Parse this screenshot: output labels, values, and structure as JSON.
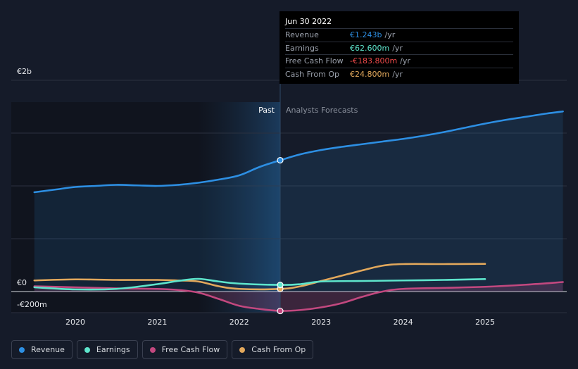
{
  "colors": {
    "revenue": "#2d8fe3",
    "earnings": "#5ee5cc",
    "fcf": "#c2487f",
    "cfo": "#e2a85c",
    "background": "#151b29"
  },
  "tooltip": {
    "date": "Jun 30 2022",
    "rows": [
      {
        "label": "Revenue",
        "value": "€1.243b",
        "unit": "/yr",
        "color": "#2d8fe3"
      },
      {
        "label": "Earnings",
        "value": "€62.600m",
        "unit": "/yr",
        "color": "#5ee5cc"
      },
      {
        "label": "Free Cash Flow",
        "value": "-€183.800m",
        "unit": "/yr",
        "color": "#ef4a4a"
      },
      {
        "label": "Cash From Op",
        "value": "€24.800m",
        "unit": "/yr",
        "color": "#e2a85c"
      }
    ]
  },
  "legend": [
    {
      "label": "Revenue",
      "color": "#2d8fe3"
    },
    {
      "label": "Earnings",
      "color": "#5ee5cc"
    },
    {
      "label": "Free Cash Flow",
      "color": "#c2487f"
    },
    {
      "label": "Cash From Op",
      "color": "#e2a85c"
    }
  ],
  "chart_data": {
    "type": "line",
    "title": "",
    "xlabel": "",
    "ylabel": "",
    "ylim": [
      -200,
      2000
    ],
    "xlim": [
      2019.5,
      2025.95
    ],
    "past_label": "Past",
    "forecast_label": "Analysts Forecasts",
    "past_end": 2022.5,
    "y_ticks": [
      {
        "value": 2000,
        "label": "€2b"
      },
      {
        "value": 0,
        "label": "€0"
      },
      {
        "value": -200,
        "label": "-€200m"
      }
    ],
    "x_ticks": [
      {
        "value": 2020,
        "label": "2020"
      },
      {
        "value": 2021,
        "label": "2021"
      },
      {
        "value": 2022,
        "label": "2022"
      },
      {
        "value": 2023,
        "label": "2023"
      },
      {
        "value": 2024,
        "label": "2024"
      },
      {
        "value": 2025,
        "label": "2025"
      }
    ],
    "highlight": {
      "x": 2022.5,
      "date": "Jun 30 2022"
    },
    "series": [
      {
        "name": "Revenue",
        "key": "revenue",
        "points": [
          [
            2019.5,
            940
          ],
          [
            2019.75,
            965
          ],
          [
            2020.0,
            990
          ],
          [
            2020.25,
            1000
          ],
          [
            2020.5,
            1010
          ],
          [
            2020.75,
            1005
          ],
          [
            2021.0,
            1000
          ],
          [
            2021.25,
            1010
          ],
          [
            2021.5,
            1030
          ],
          [
            2021.75,
            1060
          ],
          [
            2022.0,
            1100
          ],
          [
            2022.25,
            1180
          ],
          [
            2022.5,
            1243
          ],
          [
            2022.75,
            1300
          ],
          [
            2023.0,
            1340
          ],
          [
            2023.25,
            1370
          ],
          [
            2023.5,
            1395
          ],
          [
            2023.75,
            1420
          ],
          [
            2024.0,
            1445
          ],
          [
            2024.25,
            1475
          ],
          [
            2024.5,
            1510
          ],
          [
            2024.75,
            1550
          ],
          [
            2025.0,
            1590
          ],
          [
            2025.25,
            1625
          ],
          [
            2025.5,
            1655
          ],
          [
            2025.75,
            1685
          ],
          [
            2025.95,
            1705
          ]
        ]
      },
      {
        "name": "Earnings",
        "key": "earnings",
        "points": [
          [
            2019.5,
            40
          ],
          [
            2020.0,
            20
          ],
          [
            2020.5,
            25
          ],
          [
            2021.0,
            70
          ],
          [
            2021.25,
            100
          ],
          [
            2021.5,
            120
          ],
          [
            2021.75,
            95
          ],
          [
            2022.0,
            75
          ],
          [
            2022.5,
            62.6
          ],
          [
            2022.75,
            70
          ],
          [
            2023.0,
            95
          ],
          [
            2023.5,
            100
          ],
          [
            2024.0,
            105
          ],
          [
            2024.5,
            110
          ],
          [
            2025.0,
            118
          ]
        ]
      },
      {
        "name": "Free Cash Flow",
        "key": "fcf",
        "points": [
          [
            2019.5,
            50
          ],
          [
            2020.0,
            40
          ],
          [
            2020.5,
            30
          ],
          [
            2021.0,
            25
          ],
          [
            2021.25,
            15
          ],
          [
            2021.5,
            -10
          ],
          [
            2021.75,
            -70
          ],
          [
            2022.0,
            -135
          ],
          [
            2022.25,
            -165
          ],
          [
            2022.5,
            -183.8
          ],
          [
            2022.75,
            -175
          ],
          [
            2023.0,
            -150
          ],
          [
            2023.25,
            -110
          ],
          [
            2023.5,
            -50
          ],
          [
            2023.75,
            0
          ],
          [
            2024.0,
            25
          ],
          [
            2024.5,
            35
          ],
          [
            2025.0,
            45
          ],
          [
            2025.5,
            65
          ],
          [
            2025.95,
            90
          ]
        ]
      },
      {
        "name": "Cash From Op",
        "key": "cfo",
        "points": [
          [
            2019.5,
            105
          ],
          [
            2020.0,
            115
          ],
          [
            2020.5,
            110
          ],
          [
            2021.0,
            110
          ],
          [
            2021.25,
            105
          ],
          [
            2021.5,
            95
          ],
          [
            2021.75,
            50
          ],
          [
            2022.0,
            25
          ],
          [
            2022.5,
            24.8
          ],
          [
            2022.75,
            50
          ],
          [
            2023.0,
            100
          ],
          [
            2023.25,
            150
          ],
          [
            2023.5,
            200
          ],
          [
            2023.75,
            245
          ],
          [
            2024.0,
            260
          ],
          [
            2024.5,
            260
          ],
          [
            2025.0,
            262
          ]
        ]
      }
    ]
  }
}
